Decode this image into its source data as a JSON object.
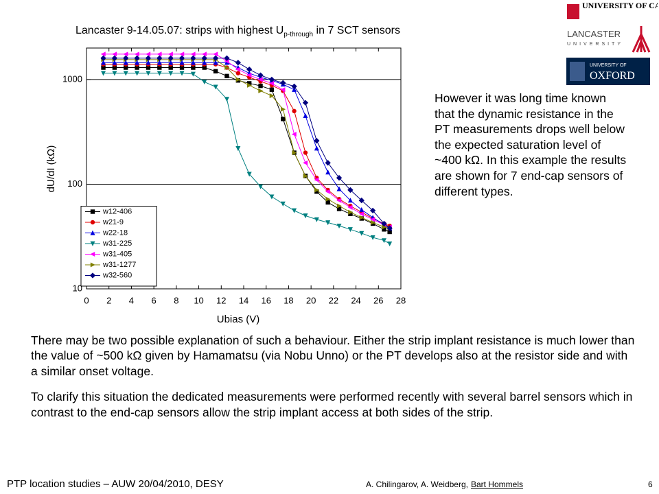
{
  "chart_data": {
    "type": "line",
    "title": "Lancaster 9-14.05.07: strips with highest U",
    "title_subscript": "p-through",
    "title_suffix": " in 7 SCT sensors",
    "x_label": "Ubias (V)",
    "y_label": "dU/dI (kΩ)",
    "log_y": true,
    "grid": true,
    "legend_position": "lower-left",
    "xlim": [
      0,
      28
    ],
    "xticks": [
      0,
      2,
      4,
      6,
      8,
      10,
      12,
      14,
      16,
      18,
      20,
      22,
      24,
      26,
      28
    ],
    "ylim": [
      10,
      2000
    ],
    "yticks": [
      10,
      100,
      1000
    ],
    "x": [
      1.5,
      2.5,
      3.5,
      4.5,
      5.5,
      6.5,
      7.5,
      8.5,
      9.5,
      10.5,
      11.5,
      12.5,
      13.5,
      14.5,
      15.5,
      16.5,
      17.5,
      18.5,
      19.5,
      20.5,
      21.5,
      22.5,
      23.5,
      24.5,
      25.5,
      26.5,
      27
    ],
    "series": [
      {
        "name": "w12-406",
        "color": "#000000",
        "marker": "square",
        "values": [
          1300,
          1300,
          1300,
          1300,
          1300,
          1300,
          1300,
          1300,
          1300,
          1300,
          1200,
          1080,
          980,
          920,
          870,
          800,
          420,
          200,
          120,
          85,
          67,
          58,
          52,
          47,
          42,
          37,
          35
        ]
      },
      {
        "name": "w21-9",
        "color": "#e00000",
        "marker": "circle",
        "values": [
          1400,
          1400,
          1400,
          1400,
          1400,
          1400,
          1400,
          1400,
          1400,
          1400,
          1400,
          1300,
          1150,
          1050,
          960,
          880,
          780,
          500,
          200,
          115,
          88,
          72,
          62,
          54,
          47,
          42,
          40
        ]
      },
      {
        "name": "w22-18",
        "color": "#0000e0",
        "marker": "triangle-up",
        "values": [
          1450,
          1450,
          1450,
          1450,
          1450,
          1450,
          1450,
          1450,
          1450,
          1450,
          1450,
          1450,
          1300,
          1150,
          1050,
          980,
          900,
          800,
          450,
          220,
          130,
          90,
          70,
          57,
          48,
          41,
          38
        ]
      },
      {
        "name": "w31-225",
        "color": "#008080",
        "marker": "triangle-down",
        "values": [
          1150,
          1150,
          1150,
          1150,
          1150,
          1150,
          1150,
          1150,
          1130,
          950,
          850,
          650,
          220,
          125,
          95,
          76,
          65,
          56,
          50,
          46,
          43,
          40,
          37,
          34,
          31,
          29,
          27
        ]
      },
      {
        "name": "w31-405",
        "color": "#ff00ff",
        "marker": "triangle-left",
        "values": [
          1750,
          1750,
          1750,
          1750,
          1750,
          1750,
          1750,
          1750,
          1750,
          1750,
          1750,
          1500,
          1250,
          1100,
          1000,
          920,
          800,
          300,
          160,
          110,
          85,
          70,
          60,
          52,
          46,
          41,
          39
        ]
      },
      {
        "name": "w31-1277",
        "color": "#808000",
        "marker": "triangle-right",
        "values": [
          1550,
          1550,
          1550,
          1550,
          1550,
          1550,
          1550,
          1550,
          1550,
          1550,
          1550,
          1300,
          1000,
          880,
          780,
          700,
          520,
          200,
          120,
          88,
          72,
          62,
          54,
          48,
          43,
          39,
          38
        ]
      },
      {
        "name": "w32-560",
        "color": "#000080",
        "marker": "diamond",
        "values": [
          1600,
          1600,
          1600,
          1600,
          1600,
          1600,
          1600,
          1600,
          1600,
          1600,
          1600,
          1600,
          1450,
          1250,
          1100,
          1000,
          930,
          860,
          600,
          260,
          160,
          115,
          88,
          70,
          56,
          42,
          38
        ]
      }
    ]
  },
  "side_text": "However it was long time known that the dynamic resistance in the PT measurements drops well below the expected saturation level of ~400 kΩ. In this example the results are shown for 7 end-cap sensors of different types.",
  "body": [
    "There may be two possible explanation of such a behaviour. Either the strip implant resistance is much lower than the value of ~500 kΩ given by Hamamatsu (via Nobu Unno) or the PT develops also at the resistor side and with a similar onset voltage.",
    "To clarify this situation the dedicated measurements were performed recently with several barrel sensors which in contrast to the end-cap sensors allow the strip implant access at both sides of the strip."
  ],
  "logos": {
    "cambridge": "UNIVERSITY OF CAMBRIDGE",
    "lancaster": "LANCASTER",
    "lancaster_sub": "UNIVERSITY",
    "oxford_top": "UNIVERSITY OF",
    "oxford": "OXFORD"
  },
  "footer": {
    "left": "PTP location studies – AUW 20/04/2010, DESY",
    "authors": "A. Chilingarov, A. Weidberg,",
    "presenter": "Bart Hommels",
    "page": "6"
  }
}
